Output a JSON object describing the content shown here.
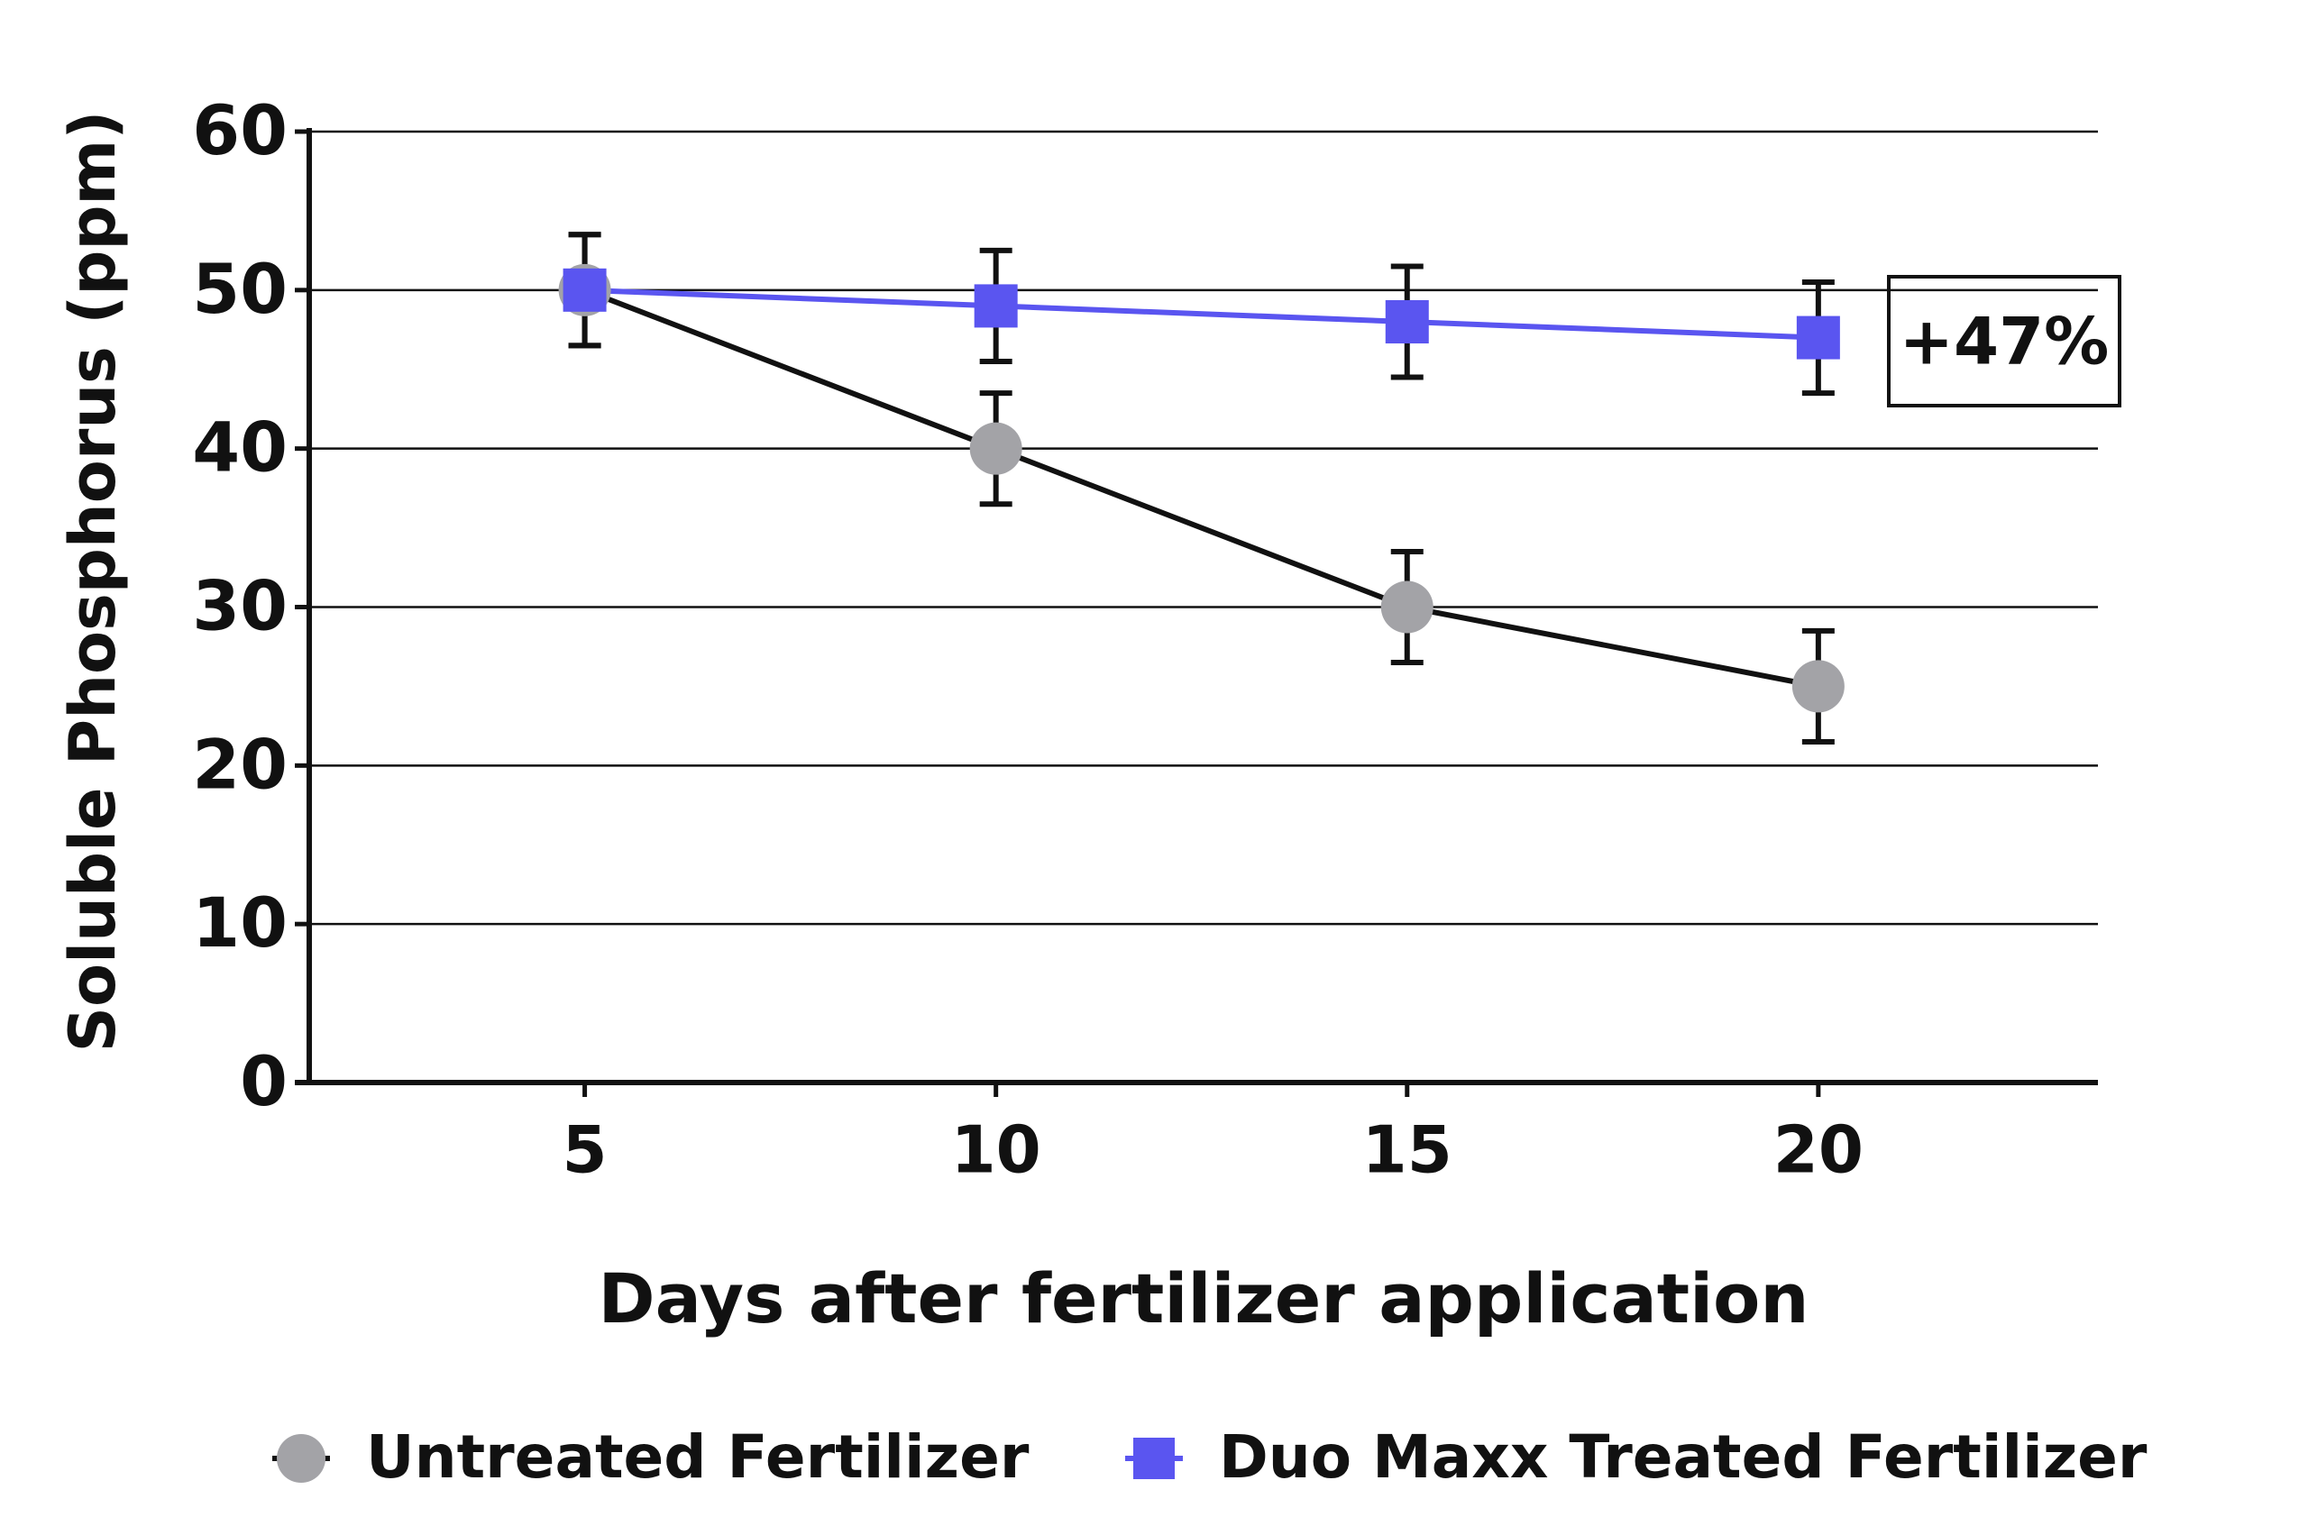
{
  "chart_data": {
    "type": "line",
    "x_label": "Days after fertilizer application",
    "y_label": "Soluble Phosphorus (ppm)",
    "x": [
      5,
      10,
      15,
      20
    ],
    "xlim": [
      1.65,
      23.4
    ],
    "xticks": [
      5,
      10,
      15,
      20
    ],
    "ylim": [
      0,
      60
    ],
    "yticks": [
      0,
      10,
      20,
      30,
      40,
      50,
      60
    ],
    "grid": true,
    "legend": "bottom",
    "series": [
      {
        "name": "Untreated Fertilizer",
        "color": "#a3a3a7",
        "line_color": "#111111",
        "marker": "circle",
        "values": [
          50,
          40,
          30,
          25
        ],
        "errors": [
          3.5,
          3.5,
          3.5,
          3.5
        ]
      },
      {
        "name": "Duo Maxx Treated Fertilizer",
        "color": "#5a55f0",
        "line_color": "#5a55f0",
        "marker": "square",
        "values": [
          50,
          49,
          48,
          47
        ],
        "errors": [
          3.5,
          3.5,
          3.5,
          3.5
        ]
      }
    ],
    "annotation": "+47%"
  }
}
